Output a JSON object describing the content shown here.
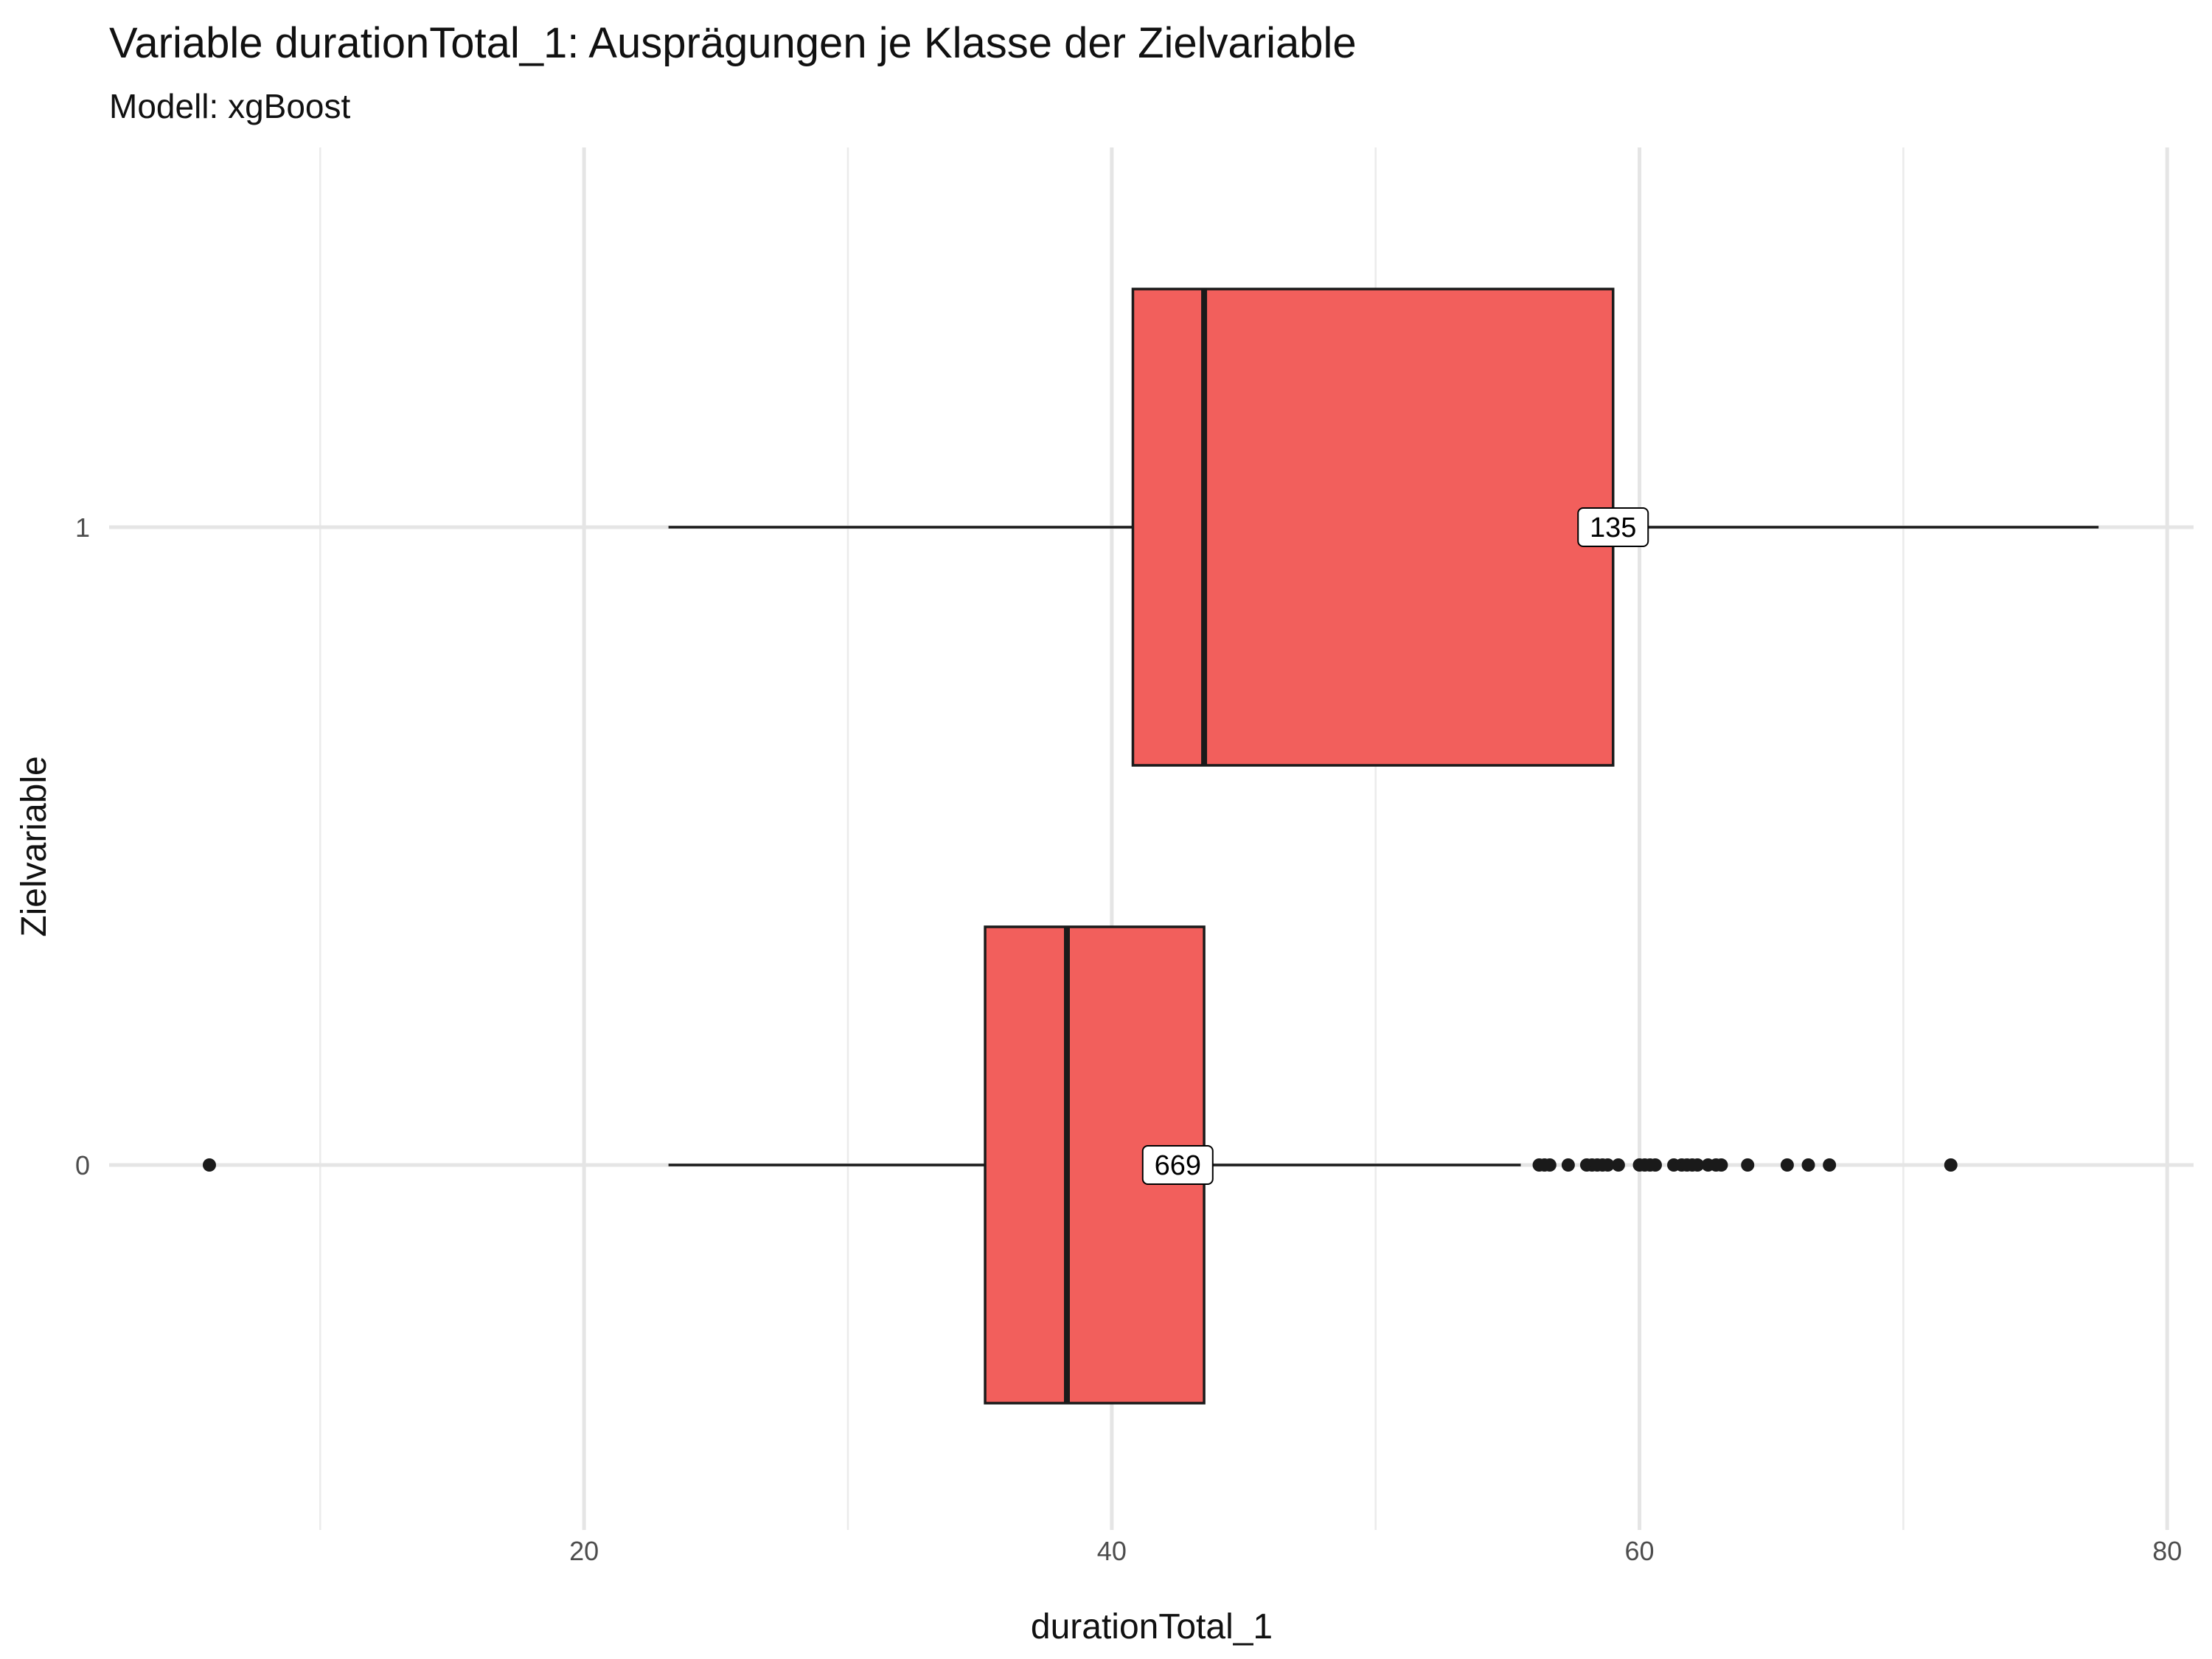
{
  "chart_data": {
    "type": "boxplot",
    "orientation": "horizontal",
    "title": "Variable durationTotal_1: Ausprägungen je Klasse der Zielvariable",
    "subtitle": "Modell: xgBoost",
    "xlabel": "durationTotal_1",
    "ylabel": "Zielvariable",
    "xlim": [
      2,
      81
    ],
    "x_ticks": [
      20,
      40,
      60,
      80
    ],
    "x_minor_ticks": [
      10,
      30,
      50,
      70
    ],
    "categories": [
      "0",
      "1"
    ],
    "fill_color": "#f25f5c",
    "grid": true,
    "legend": "none",
    "boxes": [
      {
        "category": "0",
        "whisker_low": 23.2,
        "q1": 35.2,
        "median": 38.3,
        "q3": 43.5,
        "whisker_high": 55.5,
        "count_label": "669",
        "label_x": 42.5,
        "outliers": [
          5.8,
          56.2,
          56.4,
          56.6,
          57.3,
          58.0,
          58.2,
          58.4,
          58.6,
          58.8,
          59.2,
          60.0,
          60.2,
          60.4,
          60.6,
          61.3,
          61.6,
          61.8,
          62.0,
          62.2,
          62.6,
          62.9,
          63.1,
          64.1,
          65.6,
          66.4,
          67.2,
          71.8
        ]
      },
      {
        "category": "1",
        "whisker_low": 23.2,
        "q1": 40.8,
        "median": 43.5,
        "q3": 59.0,
        "whisker_high": 77.4,
        "count_label": "135",
        "label_x": 59.0,
        "outliers": []
      }
    ]
  }
}
